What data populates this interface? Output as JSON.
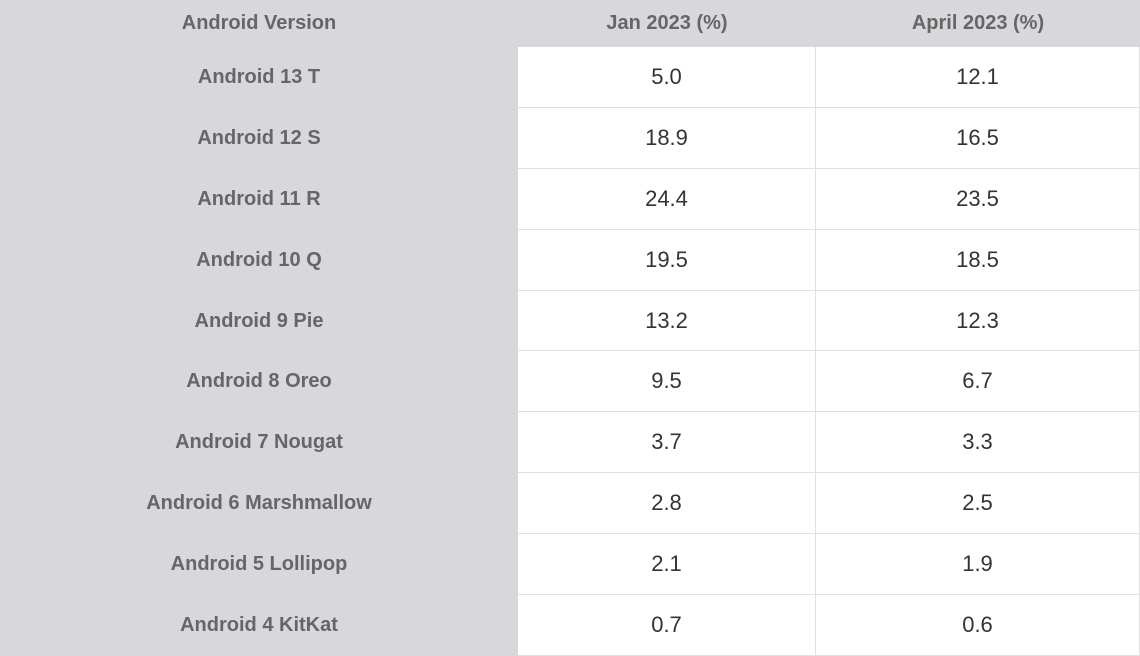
{
  "table": {
    "header": [
      "Android Version",
      "Jan 2023 (%)",
      "April 2023 (%)"
    ],
    "rows": [
      [
        "Android 13 T",
        "5.0",
        "12.1"
      ],
      [
        "Android 12 S",
        "18.9",
        "16.5"
      ],
      [
        "Android 11 R",
        "24.4",
        "23.5"
      ],
      [
        "Android 10 Q",
        "19.5",
        "18.5"
      ],
      [
        "Android 9 Pie",
        "13.2",
        "12.3"
      ],
      [
        "Android 8 Oreo",
        "9.5",
        "6.7"
      ],
      [
        "Android 7 Nougat",
        "3.7",
        "3.3"
      ],
      [
        "Android 6 Marshmallow",
        "2.8",
        "2.5"
      ],
      [
        "Android 5 Lollipop",
        "2.1",
        "1.9"
      ],
      [
        "Android 4 KitKat",
        "0.7",
        "0.6"
      ]
    ]
  }
}
